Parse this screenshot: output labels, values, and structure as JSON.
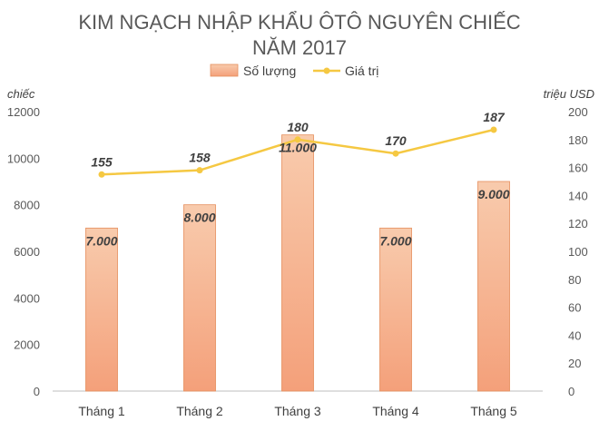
{
  "chart_data": {
    "type": "bar",
    "title_line1": "KIM NGẠCH NHẬP KHẨU ÔTÔ NGUYÊN CHIẾC",
    "title_line2": "NĂM 2017",
    "categories": [
      "Tháng 1",
      "Tháng 2",
      "Tháng 3",
      "Tháng 4",
      "Tháng 5"
    ],
    "series": [
      {
        "name": "Số lượng",
        "kind": "bar",
        "axis": "left",
        "values": [
          7000,
          8000,
          11000,
          7000,
          9000
        ],
        "labels": [
          "7.000",
          "8.000",
          "11.000",
          "7.000",
          "9.000"
        ],
        "color": "#F4B183"
      },
      {
        "name": "Giá trị",
        "kind": "line",
        "axis": "right",
        "values": [
          155,
          158,
          180,
          170,
          187
        ],
        "labels": [
          "155",
          "158",
          "180",
          "170",
          "187"
        ],
        "color": "#F5C842"
      }
    ],
    "ylabel_left": "chiếc",
    "ylabel_right": "triệu USD",
    "ylim_left": [
      0,
      12000
    ],
    "ylim_right": [
      0,
      200
    ],
    "yticks_left": [
      0,
      2000,
      4000,
      6000,
      8000,
      10000,
      12000
    ],
    "yticks_right": [
      0,
      20,
      40,
      60,
      80,
      100,
      120,
      140,
      160,
      180,
      200
    ],
    "legend_position": "top",
    "grid": false
  }
}
